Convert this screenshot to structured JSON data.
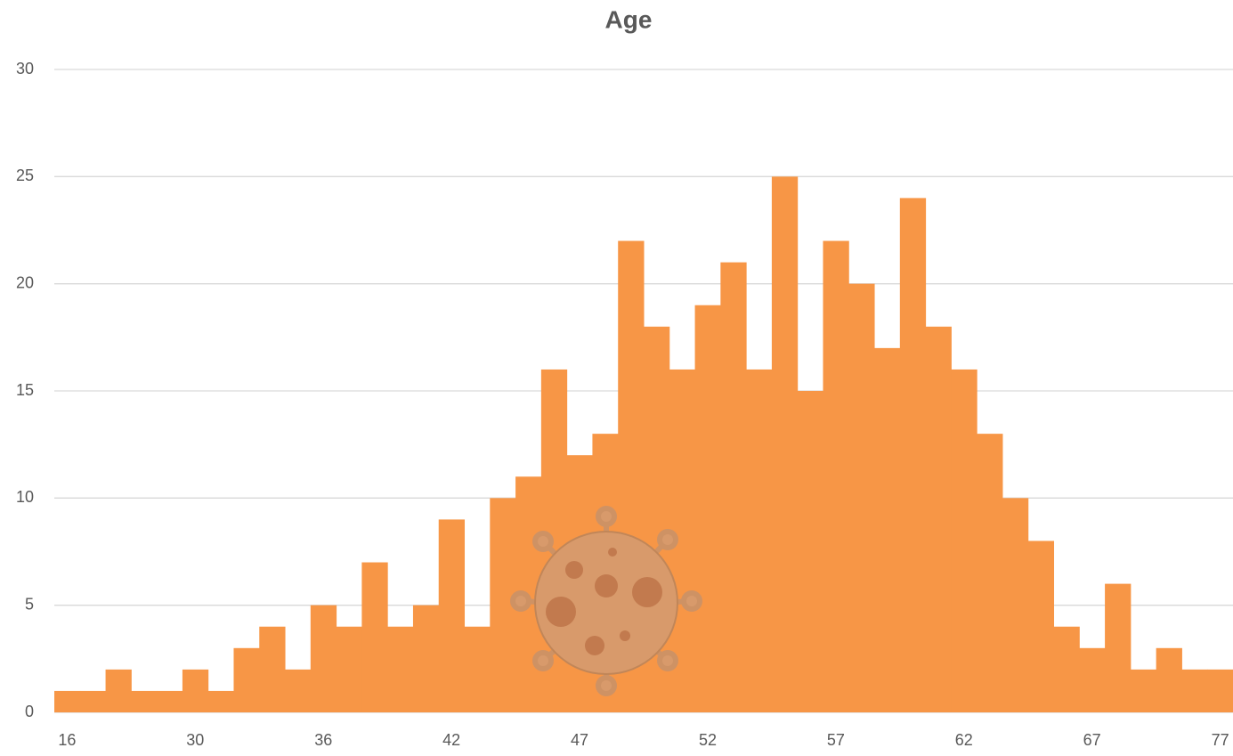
{
  "chart_data": {
    "type": "bar",
    "title": "Age",
    "categories": [
      "16",
      null,
      null,
      null,
      null,
      "30",
      null,
      null,
      null,
      null,
      "36",
      null,
      null,
      null,
      null,
      "42",
      null,
      null,
      null,
      null,
      "47",
      null,
      null,
      null,
      null,
      "52",
      null,
      null,
      null,
      null,
      "57",
      null,
      null,
      null,
      null,
      "62",
      null,
      null,
      null,
      null,
      "67",
      null,
      null,
      null,
      null,
      "77"
    ],
    "values": [
      1,
      1,
      2,
      1,
      1,
      2,
      1,
      3,
      4,
      2,
      5,
      4,
      7,
      4,
      5,
      9,
      4,
      10,
      11,
      16,
      12,
      13,
      22,
      18,
      16,
      19,
      21,
      16,
      25,
      15,
      22,
      20,
      17,
      24,
      18,
      16,
      13,
      10,
      8,
      4,
      3,
      6,
      2,
      3,
      2,
      2
    ],
    "color": "#f79646",
    "ylim": [
      0,
      30
    ],
    "yticks": [
      0,
      5,
      10,
      15,
      20,
      25,
      30
    ],
    "grid": true
  }
}
